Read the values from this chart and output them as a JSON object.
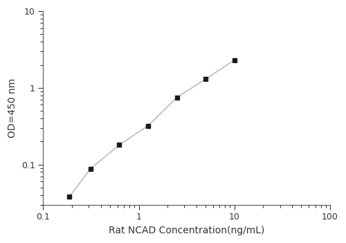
{
  "x": [
    0.188,
    0.313,
    0.625,
    1.25,
    2.5,
    5.0,
    10.0
  ],
  "y": [
    0.038,
    0.088,
    0.18,
    0.32,
    0.75,
    1.3,
    2.3
  ],
  "xlim": [
    0.1,
    100
  ],
  "ylim": [
    0.03,
    10
  ],
  "xlabel": "Rat NCAD Concentration(ng/mL)",
  "ylabel": "OD=450 nm",
  "line_color": "#b0b0b0",
  "marker_color": "#1a1a1a",
  "marker": "s",
  "marker_size": 5,
  "line_width": 1.0,
  "background_color": "#ffffff",
  "xticks": [
    0.1,
    1,
    10,
    100
  ],
  "xtick_labels": [
    "0.1",
    "1",
    "10",
    "100"
  ],
  "yticks": [
    0.1,
    1,
    10
  ],
  "ytick_labels": [
    "0.1",
    "1",
    "10"
  ],
  "xlabel_fontsize": 10,
  "ylabel_fontsize": 10,
  "tick_labelsize": 9
}
